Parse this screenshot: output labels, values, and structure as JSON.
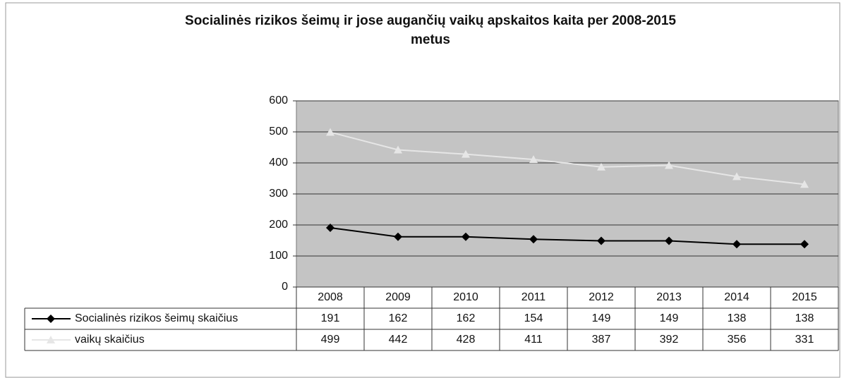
{
  "chart_data": {
    "type": "line",
    "title": [
      "Socialinės rizikos šeimų ir jose augančių vaikų apskaitos kaita per 2008-2015",
      "metus"
    ],
    "categories": [
      "2008",
      "2009",
      "2010",
      "2011",
      "2012",
      "2013",
      "2014",
      "2015"
    ],
    "series": [
      {
        "name": "Socialinės rizikos šeimų skaičius",
        "color": "#000000",
        "marker": "diamond",
        "values": [
          191,
          162,
          162,
          154,
          149,
          149,
          138,
          138
        ]
      },
      {
        "name": "vaikų skaičius",
        "color": "#e6e6e6",
        "marker": "triangle",
        "values": [
          499,
          442,
          428,
          411,
          387,
          392,
          356,
          331
        ]
      }
    ],
    "ylim": [
      0,
      600
    ],
    "yticks": [
      0,
      100,
      200,
      300,
      400,
      500,
      600
    ],
    "grid": true,
    "plot_background": "#c4c4c4"
  }
}
